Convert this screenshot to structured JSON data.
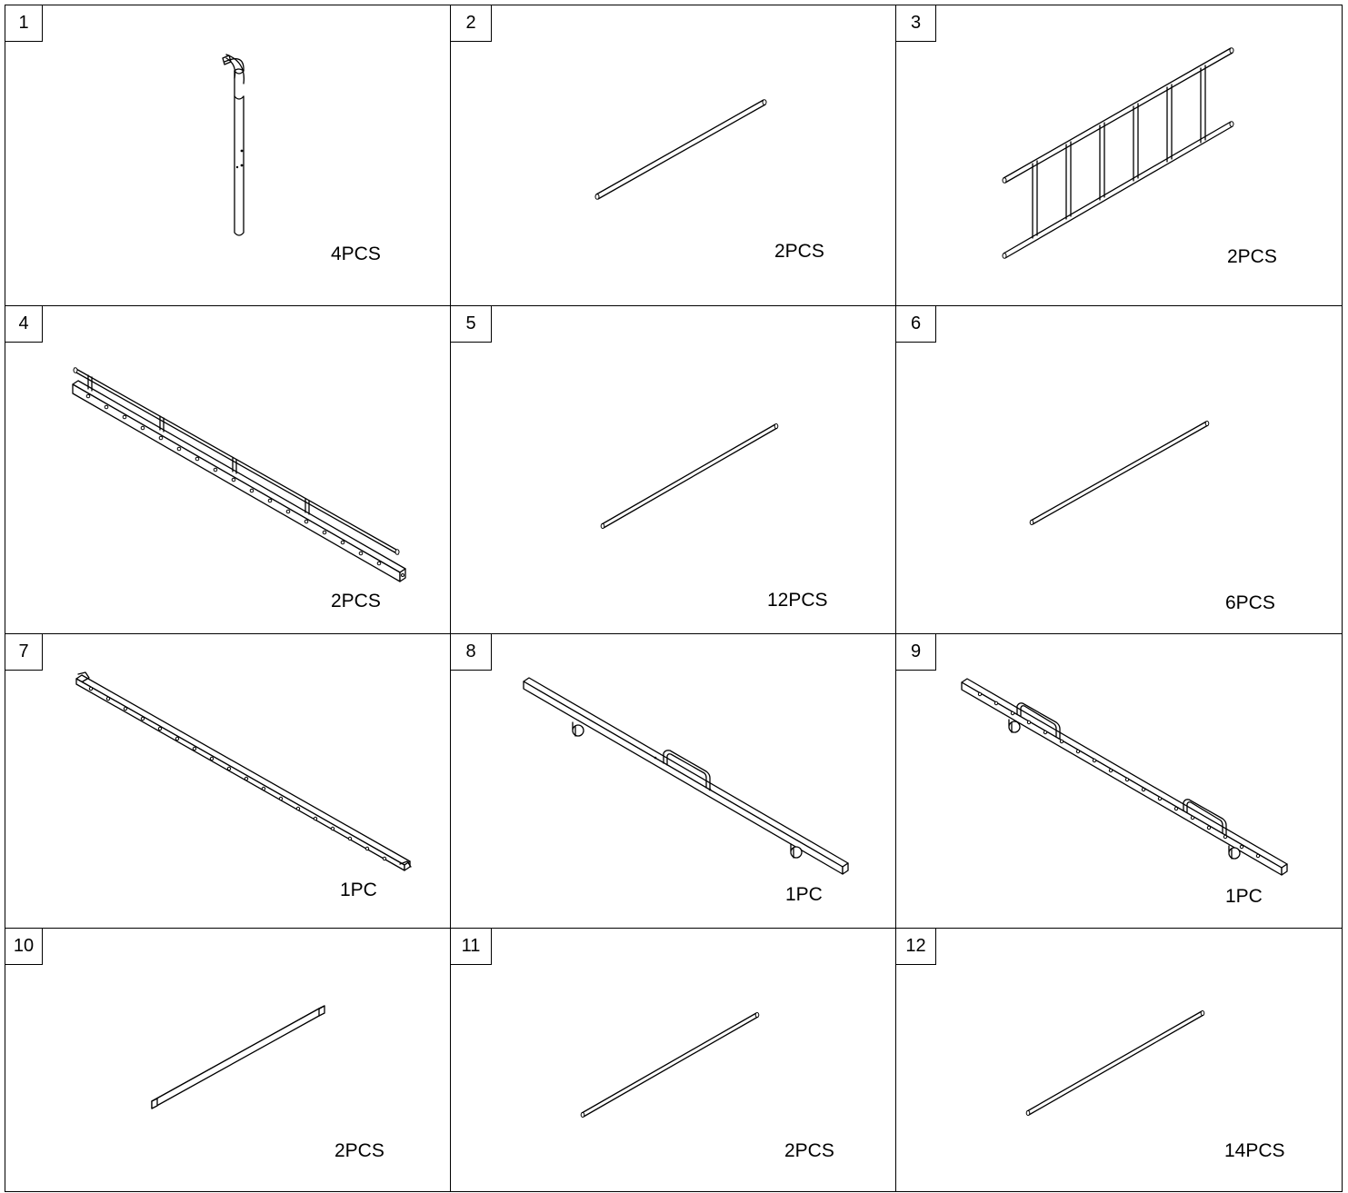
{
  "parts": [
    {
      "number": "1",
      "quantity": "4PCS"
    },
    {
      "number": "2",
      "quantity": "2PCS"
    },
    {
      "number": "3",
      "quantity": "2PCS"
    },
    {
      "number": "4",
      "quantity": "2PCS"
    },
    {
      "number": "5",
      "quantity": "12PCS"
    },
    {
      "number": "6",
      "quantity": "6PCS"
    },
    {
      "number": "7",
      "quantity": "1PC"
    },
    {
      "number": "8",
      "quantity": "1PC"
    },
    {
      "number": "9",
      "quantity": "1PC"
    },
    {
      "number": "10",
      "quantity": "2PCS"
    },
    {
      "number": "11",
      "quantity": "2PCS"
    },
    {
      "number": "12",
      "quantity": "14PCS"
    }
  ],
  "colors": {
    "line": "#000000",
    "background": "#ffffff"
  }
}
